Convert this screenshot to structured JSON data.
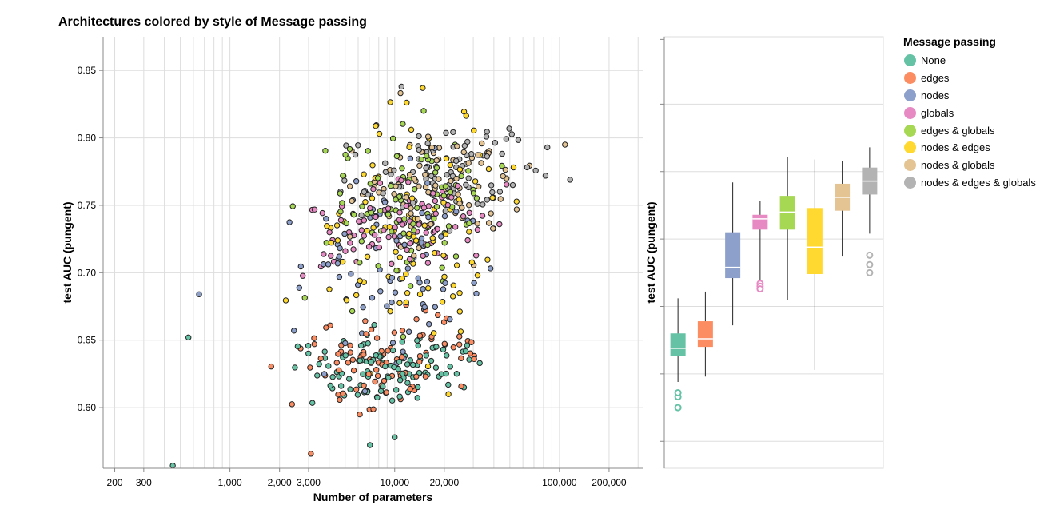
{
  "title": "Architectures colored by style of Message passing",
  "colors": {
    "None": "#66c2a5",
    "edges": "#fc8d62",
    "nodes": "#8da0cb",
    "globals": "#e78ac3",
    "edges & globals": "#a6d854",
    "nodes & edges": "#ffd92f",
    "nodes & globals": "#e5c494",
    "nodes & edges & globals": "#b3b3b3"
  },
  "legend": {
    "title": "Message passing",
    "items": [
      "None",
      "edges",
      "nodes",
      "globals",
      "edges & globals",
      "nodes & edges",
      "nodes & globals",
      "nodes & edges & globals"
    ]
  },
  "chart_data": [
    {
      "type": "scatter",
      "xlabel": "Number of parameters",
      "ylabel": "test AUC (pungent)",
      "xscale": "log",
      "xlim": [
        170,
        320000
      ],
      "ylim": [
        0.555,
        0.875
      ],
      "xticks": [
        200,
        300,
        1000,
        2000,
        3000,
        10000,
        20000,
        100000,
        200000
      ],
      "xtick_labels": [
        "200",
        "300",
        "1,000",
        "2,000",
        "3,000",
        "10,000",
        "20,000",
        "100,000",
        "200,000"
      ],
      "yticks": [
        0.6,
        0.65,
        0.7,
        0.75,
        0.8,
        0.85
      ],
      "ytick_labels": [
        "0.60",
        "0.65",
        "0.70",
        "0.75",
        "0.80",
        "0.85"
      ],
      "grid": true,
      "clusters": [
        {
          "group": "None",
          "n": 110,
          "x_range": [
            550,
            60000
          ],
          "y_mean": 0.628,
          "y_sd": 0.014
        },
        {
          "group": "edges",
          "n": 95,
          "x_range": [
            550,
            60000
          ],
          "y_mean": 0.635,
          "y_sd": 0.016
        },
        {
          "group": "nodes",
          "n": 90,
          "x_range": [
            650,
            60000
          ],
          "y_mean": 0.7,
          "y_sd": 0.035
        },
        {
          "group": "globals",
          "n": 95,
          "x_range": [
            800,
            80000
          ],
          "y_mean": 0.735,
          "y_sd": 0.016
        },
        {
          "group": "edges & globals",
          "n": 95,
          "x_range": [
            900,
            80000
          ],
          "y_mean": 0.748,
          "y_sd": 0.025
        },
        {
          "group": "nodes & edges",
          "n": 100,
          "x_range": [
            750,
            100000
          ],
          "y_mean": 0.725,
          "y_sd": 0.045
        },
        {
          "group": "nodes & globals",
          "n": 90,
          "x_range": [
            1500,
            100000
          ],
          "y_mean": 0.765,
          "y_sd": 0.02
        },
        {
          "group": "nodes & edges & globals",
          "n": 90,
          "x_range": [
            1800,
            110000
          ],
          "y_mean": 0.775,
          "y_sd": 0.017
        }
      ],
      "notable_points": [
        {
          "group": "None",
          "x": 450,
          "y": 0.557
        },
        {
          "group": "None",
          "x": 560,
          "y": 0.652
        },
        {
          "group": "nodes",
          "x": 650,
          "y": 0.684
        },
        {
          "group": "nodes & edges & globals",
          "x": 11000,
          "y": 0.838
        },
        {
          "group": "edges & globals",
          "x": 15000,
          "y": 0.82
        },
        {
          "group": "None",
          "x": 10000,
          "y": 0.578
        },
        {
          "group": "nodes & edges & globals",
          "x": 116000,
          "y": 0.769
        },
        {
          "group": "nodes & globals",
          "x": 108000,
          "y": 0.795
        }
      ]
    },
    {
      "type": "box",
      "ylabel": "test AUC (pungent)",
      "ylim": [
        0.555,
        0.875
      ],
      "categories": [
        "None",
        "edges",
        "nodes",
        "globals",
        "edges & globals",
        "nodes & edges",
        "nodes & globals",
        "nodes & edges & globals"
      ],
      "boxes": [
        {
          "group": "None",
          "whisker_low": 0.619,
          "q1": 0.638,
          "median": 0.644,
          "q3": 0.655,
          "whisker_high": 0.681,
          "outliers": [
            0.608,
            0.611,
            0.6
          ]
        },
        {
          "group": "edges",
          "whisker_low": 0.623,
          "q1": 0.645,
          "median": 0.651,
          "q3": 0.664,
          "whisker_high": 0.686
        },
        {
          "group": "nodes",
          "whisker_low": 0.661,
          "q1": 0.696,
          "median": 0.704,
          "q3": 0.73,
          "whisker_high": 0.767
        },
        {
          "group": "globals",
          "whisker_low": 0.694,
          "q1": 0.732,
          "median": 0.74,
          "q3": 0.743,
          "whisker_high": 0.753,
          "outliers": [
            0.692,
            0.69,
            0.688
          ]
        },
        {
          "group": "edges & globals",
          "whisker_low": 0.68,
          "q1": 0.732,
          "median": 0.745,
          "q3": 0.757,
          "whisker_high": 0.786
        },
        {
          "group": "nodes & edges",
          "whisker_low": 0.628,
          "q1": 0.699,
          "median": 0.719,
          "q3": 0.748,
          "whisker_high": 0.784
        },
        {
          "group": "nodes & globals",
          "whisker_low": 0.712,
          "q1": 0.746,
          "median": 0.756,
          "q3": 0.766,
          "whisker_high": 0.783
        },
        {
          "group": "nodes & edges & globals",
          "whisker_low": 0.729,
          "q1": 0.758,
          "median": 0.768,
          "q3": 0.778,
          "whisker_high": 0.793,
          "outliers": [
            0.713,
            0.706,
            0.7
          ]
        }
      ]
    }
  ]
}
